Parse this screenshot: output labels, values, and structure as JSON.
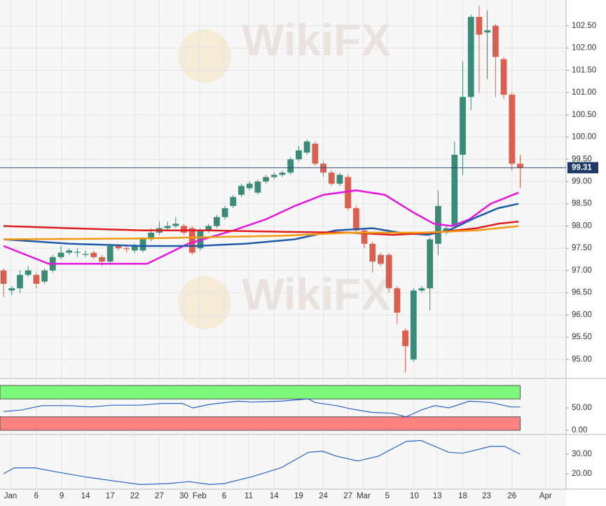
{
  "watermarks": [
    "WikiFX",
    "WikiFX"
  ],
  "chart_data": [
    {
      "type": "candlestick",
      "xlim": [
        -0.43,
        68.6
      ],
      "xticks": [
        {
          "value": 0.85,
          "label": "Jan"
        },
        {
          "value": 4,
          "label": "6"
        },
        {
          "value": 7.1,
          "label": "9"
        },
        {
          "value": 10,
          "label": "14"
        },
        {
          "value": 13,
          "label": "17"
        },
        {
          "value": 16,
          "label": "22"
        },
        {
          "value": 19,
          "label": "27"
        },
        {
          "value": 22,
          "label": "30"
        },
        {
          "value": 23.9,
          "label": "Feb"
        },
        {
          "value": 26.9,
          "label": "6"
        },
        {
          "value": 29.9,
          "label": "11"
        },
        {
          "value": 33,
          "label": "14"
        },
        {
          "value": 36,
          "label": "19"
        },
        {
          "value": 39,
          "label": "24"
        },
        {
          "value": 42,
          "label": "27"
        },
        {
          "value": 43.9,
          "label": "Mar"
        },
        {
          "value": 46.8,
          "label": "5"
        },
        {
          "value": 50.1,
          "label": "10"
        },
        {
          "value": 52.9,
          "label": "13"
        },
        {
          "value": 56,
          "label": "18"
        },
        {
          "value": 58.9,
          "label": "23"
        },
        {
          "value": 62,
          "label": "26"
        },
        {
          "value": 66.1,
          "label": "Apr"
        }
      ],
      "ylim": [
        94.62,
        103.08
      ],
      "yticks": [
        {
          "value": 95,
          "label": "95.00"
        },
        {
          "value": 95.5,
          "label": "95.50"
        },
        {
          "value": 96,
          "label": "96.00"
        },
        {
          "value": 96.5,
          "label": "96.50"
        },
        {
          "value": 97,
          "label": "97.00"
        },
        {
          "value": 97.5,
          "label": "97.50"
        },
        {
          "value": 98,
          "label": "98.00"
        },
        {
          "value": 98.5,
          "label": "98.50"
        },
        {
          "value": 99,
          "label": "99.00"
        },
        {
          "value": 99.5,
          "label": "99.50"
        },
        {
          "value": 100,
          "label": "100.00"
        },
        {
          "value": 100.5,
          "label": "100.50"
        },
        {
          "value": 101,
          "label": "101.00"
        },
        {
          "value": 101.5,
          "label": "101.50"
        },
        {
          "value": 102,
          "label": "102.00"
        },
        {
          "value": 102.5,
          "label": "102.50"
        }
      ],
      "grid": true,
      "up_color": "#3b8a78",
      "down_color": "#d9604f",
      "last_color": "#1f3a66",
      "open": [
        97.0,
        96.55,
        96.6,
        96.9,
        96.9,
        96.75,
        97.0,
        97.3,
        97.4,
        97.4,
        97.35,
        97.4,
        97.3,
        97.2,
        97.55,
        97.5,
        97.45,
        97.45,
        97.7,
        97.85,
        97.95,
        98.0,
        98.0,
        97.95,
        97.5,
        97.9,
        98.0,
        98.2,
        98.45,
        98.7,
        98.85,
        98.75,
        99.0,
        99.1,
        99.15,
        99.2,
        99.5,
        99.65,
        99.85,
        99.4,
        99.2,
        98.95,
        99.1,
        98.4,
        97.9,
        97.6,
        97.35,
        97.35,
        96.6,
        95.65,
        95.0,
        96.55,
        96.6,
        97.6,
        97.85,
        98.0,
        99.6,
        100.9,
        102.7,
        102.35,
        102.5,
        101.75,
        100.95,
        99.4
      ],
      "high": [
        97.05,
        96.65,
        97.0,
        97.1,
        96.95,
        97.05,
        97.35,
        97.55,
        97.5,
        97.5,
        97.45,
        97.45,
        97.35,
        97.6,
        97.6,
        97.55,
        97.6,
        97.75,
        97.95,
        98.1,
        98.1,
        98.2,
        98.05,
        98.0,
        97.95,
        98.05,
        98.25,
        98.45,
        98.7,
        98.95,
        99.0,
        99.05,
        99.15,
        99.2,
        99.25,
        99.55,
        99.8,
        99.95,
        99.9,
        99.45,
        99.25,
        99.2,
        99.15,
        98.45,
        97.95,
        97.65,
        97.4,
        97.4,
        96.65,
        95.7,
        96.6,
        96.65,
        97.75,
        98.8,
        98.0,
        99.9,
        101.7,
        102.75,
        102.95,
        102.85,
        102.55,
        101.8,
        101.0,
        99.6
      ],
      "low": [
        96.4,
        96.45,
        96.5,
        96.85,
        96.6,
        96.7,
        96.95,
        97.25,
        97.35,
        97.3,
        97.3,
        97.25,
        97.1,
        97.15,
        97.45,
        97.4,
        97.4,
        97.4,
        97.65,
        97.8,
        97.9,
        97.95,
        97.8,
        97.35,
        97.45,
        97.85,
        97.95,
        98.15,
        98.4,
        98.65,
        98.8,
        98.7,
        98.95,
        99.05,
        99.1,
        99.15,
        99.45,
        99.6,
        99.35,
        99.1,
        98.9,
        98.9,
        98.35,
        97.85,
        97.5,
        96.95,
        97.1,
        96.5,
        95.8,
        94.7,
        94.95,
        96.5,
        96.1,
        97.35,
        97.8,
        97.95,
        99.15,
        100.6,
        101.0,
        101.3,
        100.9,
        100.85,
        99.25,
        98.85
      ],
      "close": [
        96.7,
        96.6,
        96.9,
        97.0,
        96.7,
        97.0,
        97.3,
        97.4,
        97.45,
        97.42,
        97.37,
        97.3,
        97.2,
        97.55,
        97.5,
        97.48,
        97.55,
        97.7,
        97.85,
        97.95,
        98.0,
        98.05,
        97.85,
        97.4,
        97.9,
        98.0,
        98.2,
        98.4,
        98.65,
        98.9,
        98.95,
        99.0,
        99.1,
        99.15,
        99.2,
        99.5,
        99.7,
        99.9,
        99.4,
        99.2,
        98.95,
        99.15,
        98.4,
        97.9,
        97.6,
        97.2,
        97.15,
        96.6,
        96.05,
        95.3,
        96.55,
        96.6,
        97.7,
        98.45,
        97.95,
        99.6,
        100.9,
        102.7,
        102.3,
        102.4,
        101.8,
        100.95,
        99.4,
        99.31
      ],
      "series": [
        {
          "color": "#e815e0",
          "x": [
            0,
            5.5,
            8,
            17,
            17.5,
            22.5,
            28,
            32,
            35.5,
            39,
            43,
            46.5,
            50,
            52.5,
            54.7,
            56.8,
            59.4,
            62.8
          ],
          "values": [
            97.55,
            97.15,
            97.15,
            97.15,
            97.15,
            97.6,
            97.9,
            98.15,
            98.45,
            98.7,
            98.8,
            98.7,
            98.3,
            98.05,
            98.0,
            98.15,
            98.5,
            98.75
          ]
        },
        {
          "color": "#1f5aa8",
          "x": [
            0,
            8,
            17,
            23.5,
            29.5,
            35.5,
            40.5,
            45,
            48.3,
            51.7,
            54.3,
            57.7,
            60.3,
            62.8
          ],
          "values": [
            97.7,
            97.6,
            97.55,
            97.55,
            97.6,
            97.7,
            97.9,
            97.95,
            97.85,
            97.8,
            97.9,
            98.2,
            98.4,
            98.5
          ]
        },
        {
          "color": "#e01b1b",
          "x": [
            0,
            8,
            17,
            25,
            34,
            42.3,
            47.5,
            52.5,
            57.7,
            60.3,
            62.8
          ],
          "values": [
            98.0,
            97.95,
            97.9,
            97.9,
            97.87,
            97.85,
            97.8,
            97.85,
            97.95,
            98.05,
            98.1
          ]
        },
        {
          "color": "#f29a12",
          "x": [
            0,
            17,
            34,
            42.3,
            51,
            57.7,
            62.8
          ],
          "values": [
            97.7,
            97.72,
            97.78,
            97.85,
            97.85,
            97.9,
            98.0
          ]
        }
      ]
    },
    {
      "type": "line",
      "xlim": [
        -0.43,
        68.6
      ],
      "ylim": [
        -4.7,
        107.8
      ],
      "yticks": [
        {
          "value": 0,
          "label": "0.00"
        },
        {
          "value": 50,
          "label": "50.00"
        }
      ],
      "bands": [
        {
          "from": 70,
          "to": 100,
          "color": "#7dfa7d"
        },
        {
          "from": 0,
          "to": 30,
          "color": "#ff8282"
        }
      ],
      "series": [
        {
          "color": "#2a62c9",
          "x": [
            0,
            2.1,
            4.7,
            8.1,
            10.7,
            13.2,
            16.7,
            19.2,
            21.8,
            23.1,
            25.2,
            28.6,
            30.3,
            33.8,
            37.2,
            38,
            40.6,
            42.3,
            44.9,
            47.4,
            49.1,
            50.9,
            52.6,
            54.3,
            56.8,
            59.4,
            61.9,
            63
          ],
          "values": [
            42,
            45,
            55,
            55,
            52,
            56,
            56,
            60,
            60,
            50,
            58,
            65,
            63,
            65,
            70,
            62,
            55,
            48,
            40,
            38,
            30,
            45,
            55,
            50,
            65,
            62,
            52,
            52
          ]
        }
      ]
    },
    {
      "type": "line",
      "xlim": [
        -0.43,
        68.6
      ],
      "ylim": [
        12.5,
        38.6
      ],
      "yticks": [
        {
          "value": 20,
          "label": "20.00"
        },
        {
          "value": 30,
          "label": "30.00"
        }
      ],
      "series": [
        {
          "color": "#2a62c9",
          "x": [
            0,
            1.3,
            3.8,
            6.4,
            9.8,
            13.2,
            16.7,
            20.1,
            22.6,
            25.2,
            26.9,
            30.3,
            33.8,
            37.2,
            38.9,
            40.6,
            43.2,
            45.7,
            49.1,
            50.9,
            54.3,
            56,
            59.4,
            61.1,
            63
          ],
          "values": [
            20,
            23,
            23,
            21,
            18.5,
            16.5,
            14.5,
            15,
            16,
            14.5,
            15,
            18.5,
            23,
            31,
            31.5,
            29,
            26.5,
            29,
            36.5,
            37,
            31,
            30.5,
            34,
            34,
            30
          ]
        }
      ]
    }
  ]
}
